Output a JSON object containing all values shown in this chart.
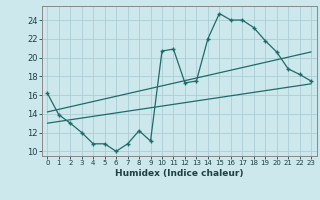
{
  "xlabel": "Humidex (Indice chaleur)",
  "bg_color": "#cce8ec",
  "grid_color": "#aacdd4",
  "line_color": "#1e6b68",
  "xlim": [
    -0.5,
    23.5
  ],
  "ylim": [
    9.5,
    25.5
  ],
  "xticks": [
    0,
    1,
    2,
    3,
    4,
    5,
    6,
    7,
    8,
    9,
    10,
    11,
    12,
    13,
    14,
    15,
    16,
    17,
    18,
    19,
    20,
    21,
    22,
    23
  ],
  "yticks": [
    10,
    12,
    14,
    16,
    18,
    20,
    22,
    24
  ],
  "line1_x": [
    0,
    1,
    2,
    3,
    4,
    5,
    6,
    7,
    8,
    9,
    10,
    11,
    12,
    13,
    14,
    15,
    16,
    17,
    18,
    19,
    20,
    21,
    22,
    23
  ],
  "line1_y": [
    16.2,
    13.9,
    13.0,
    12.0,
    10.8,
    10.8,
    10.0,
    10.8,
    12.2,
    11.1,
    20.7,
    20.9,
    17.3,
    17.5,
    22.0,
    24.7,
    24.0,
    24.0,
    23.2,
    21.8,
    20.6,
    18.8,
    18.2,
    17.5
  ],
  "line2_x": [
    0,
    23
  ],
  "line2_y": [
    13.0,
    17.2
  ],
  "line3_x": [
    0,
    23
  ],
  "line3_y": [
    14.2,
    20.6
  ]
}
